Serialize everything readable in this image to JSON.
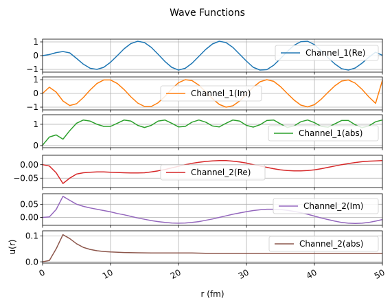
{
  "figure": {
    "title": "Wave Functions"
  },
  "chart_data": [
    {
      "type": "line",
      "name_id": "channel_1_re",
      "series": [
        {
          "name": "Channel_1(Re)",
          "color": "#1f77b4",
          "x": [
            0,
            1,
            2,
            3,
            4,
            5,
            6,
            7,
            8,
            9,
            10,
            11,
            12,
            13,
            14,
            15,
            16,
            17,
            18,
            19,
            20,
            21,
            22,
            23,
            24,
            25,
            26,
            27,
            28,
            29,
            30,
            31,
            32,
            33,
            34,
            35,
            36,
            37,
            38,
            39,
            40,
            41,
            42,
            43,
            44,
            45,
            46,
            47,
            48,
            49,
            50
          ],
          "y": [
            0,
            0.08,
            0.22,
            0.3,
            0.2,
            -0.2,
            -0.62,
            -0.92,
            -1.0,
            -0.85,
            -0.48,
            0.0,
            0.5,
            0.88,
            1.05,
            0.95,
            0.6,
            0.1,
            -0.42,
            -0.85,
            -1.05,
            -0.92,
            -0.55,
            -0.05,
            0.45,
            0.85,
            1.05,
            0.95,
            0.6,
            0.1,
            -0.4,
            -0.85,
            -1.05,
            -1.02,
            -0.7,
            -0.22,
            0.3,
            0.75,
            1.02,
            1.05,
            0.8,
            0.35,
            -0.15,
            -0.6,
            -0.95,
            -1.05,
            -0.9,
            -0.55,
            -0.12,
            0.25,
            0.02
          ]
        }
      ],
      "ylim": [
        -1.2,
        1.2
      ],
      "yticks": [
        -1,
        0,
        1
      ],
      "ytick_labels": [
        "−1",
        "0",
        "1"
      ],
      "xlim": [
        0,
        50
      ],
      "legend": "right"
    },
    {
      "type": "line",
      "name_id": "channel_1_im",
      "series": [
        {
          "name": "Channel_1(Im)",
          "color": "#ff7f0e",
          "x": [
            0,
            1,
            2,
            3,
            4,
            5,
            6,
            7,
            8,
            9,
            10,
            11,
            12,
            13,
            14,
            15,
            16,
            17,
            18,
            19,
            20,
            21,
            22,
            23,
            24,
            25,
            26,
            27,
            28,
            29,
            30,
            31,
            32,
            33,
            34,
            35,
            36,
            37,
            38,
            39,
            40,
            41,
            42,
            43,
            44,
            45,
            46,
            47,
            48,
            49,
            50
          ],
          "y": [
            0,
            0.45,
            0.1,
            -0.55,
            -0.88,
            -0.75,
            -0.3,
            0.25,
            0.72,
            0.98,
            0.98,
            0.72,
            0.28,
            -0.25,
            -0.7,
            -0.95,
            -0.95,
            -0.68,
            -0.22,
            0.32,
            0.78,
            1.0,
            0.93,
            0.6,
            0.12,
            -0.38,
            -0.8,
            -1.0,
            -0.9,
            -0.55,
            -0.05,
            0.45,
            0.85,
            1.0,
            0.88,
            0.5,
            0.0,
            -0.48,
            -0.85,
            -0.98,
            -0.82,
            -0.42,
            0.08,
            0.55,
            0.9,
            0.98,
            0.75,
            0.3,
            -0.25,
            -0.72,
            0.95
          ]
        }
      ],
      "ylim": [
        -1.2,
        1.2
      ],
      "yticks": [
        -1,
        0,
        1
      ],
      "ytick_labels": [
        "−1",
        "0",
        "1"
      ],
      "xlim": [
        0,
        50
      ],
      "legend": "center"
    },
    {
      "type": "line",
      "name_id": "channel_1_abs",
      "series": [
        {
          "name": "Channel_1(abs)",
          "color": "#2ca02c",
          "x": [
            0,
            1,
            2,
            3,
            4,
            5,
            6,
            7,
            8,
            9,
            10,
            11,
            12,
            13,
            14,
            15,
            16,
            17,
            18,
            19,
            20,
            21,
            22,
            23,
            24,
            25,
            26,
            27,
            28,
            29,
            30,
            31,
            32,
            33,
            34,
            35,
            36,
            37,
            38,
            39,
            40,
            41,
            42,
            43,
            44,
            45,
            46,
            47,
            48,
            49,
            50
          ],
          "y": [
            0.02,
            0.4,
            0.5,
            0.3,
            0.7,
            1.05,
            1.2,
            1.15,
            1.0,
            0.9,
            0.9,
            1.05,
            1.2,
            1.15,
            0.95,
            0.85,
            0.95,
            1.15,
            1.2,
            1.05,
            0.88,
            0.9,
            1.1,
            1.2,
            1.1,
            0.92,
            0.88,
            1.05,
            1.2,
            1.15,
            0.95,
            0.87,
            0.98,
            1.18,
            1.2,
            1.02,
            0.85,
            0.92,
            1.12,
            1.2,
            1.08,
            0.9,
            0.86,
            1.02,
            1.18,
            1.18,
            0.98,
            0.84,
            0.92,
            1.12,
            1.2
          ]
        }
      ],
      "ylim": [
        -0.1,
        1.45
      ],
      "yticks": [
        0,
        1
      ],
      "ytick_labels": [
        "0",
        "1"
      ],
      "xlim": [
        0,
        50
      ],
      "legend": "lower right"
    },
    {
      "type": "line",
      "name_id": "channel_2_re",
      "series": [
        {
          "name": "Channel_2(Re)",
          "color": "#d62728",
          "x": [
            0,
            1,
            2,
            3,
            4,
            5,
            6,
            7,
            8,
            9,
            10,
            11,
            12,
            13,
            14,
            15,
            16,
            17,
            18,
            19,
            20,
            21,
            22,
            23,
            24,
            25,
            26,
            27,
            28,
            29,
            30,
            31,
            32,
            33,
            34,
            35,
            36,
            37,
            38,
            39,
            40,
            41,
            42,
            43,
            44,
            45,
            46,
            47,
            48,
            49,
            50
          ],
          "y": [
            0,
            -0.005,
            -0.03,
            -0.07,
            -0.05,
            -0.035,
            -0.03,
            -0.028,
            -0.027,
            -0.027,
            -0.028,
            -0.029,
            -0.03,
            -0.031,
            -0.031,
            -0.03,
            -0.027,
            -0.023,
            -0.018,
            -0.012,
            -0.006,
            0.0,
            0.005,
            0.009,
            0.012,
            0.014,
            0.015,
            0.015,
            0.013,
            0.01,
            0.006,
            0.0,
            -0.005,
            -0.01,
            -0.015,
            -0.019,
            -0.022,
            -0.023,
            -0.023,
            -0.022,
            -0.019,
            -0.015,
            -0.01,
            -0.005,
            0.0,
            0.004,
            0.008,
            0.011,
            0.013,
            0.014,
            0.015
          ]
        }
      ],
      "ylim": [
        -0.085,
        0.035
      ],
      "yticks": [
        0,
        -0.05
      ],
      "ytick_labels": [
        "0.00",
        "−0.05"
      ],
      "xlim": [
        0,
        50
      ],
      "legend": "center"
    },
    {
      "type": "line",
      "name_id": "channel_2_im",
      "series": [
        {
          "name": "Channel_2(Im)",
          "color": "#9467bd",
          "x": [
            0,
            1,
            2,
            3,
            4,
            5,
            6,
            7,
            8,
            9,
            10,
            11,
            12,
            13,
            14,
            15,
            16,
            17,
            18,
            19,
            20,
            21,
            22,
            23,
            24,
            25,
            26,
            27,
            28,
            29,
            30,
            31,
            32,
            33,
            34,
            35,
            36,
            37,
            38,
            39,
            40,
            41,
            42,
            43,
            44,
            45,
            46,
            47,
            48,
            49,
            50
          ],
          "y": [
            0,
            0.002,
            0.03,
            0.08,
            0.065,
            0.05,
            0.042,
            0.036,
            0.031,
            0.026,
            0.021,
            0.015,
            0.01,
            0.004,
            -0.002,
            -0.007,
            -0.012,
            -0.016,
            -0.019,
            -0.021,
            -0.022,
            -0.021,
            -0.019,
            -0.016,
            -0.011,
            -0.006,
            0.0,
            0.006,
            0.012,
            0.017,
            0.022,
            0.026,
            0.029,
            0.031,
            0.031,
            0.03,
            0.027,
            0.023,
            0.018,
            0.012,
            0.005,
            -0.002,
            -0.008,
            -0.014,
            -0.019,
            -0.022,
            -0.023,
            -0.022,
            -0.019,
            -0.014,
            -0.008
          ]
        }
      ],
      "ylim": [
        -0.03,
        0.09
      ],
      "yticks": [
        0.05,
        0
      ],
      "ytick_labels": [
        "0.05",
        "0.00"
      ],
      "xlim": [
        0,
        50
      ],
      "legend": "right"
    },
    {
      "type": "line",
      "name_id": "channel_2_abs",
      "series": [
        {
          "name": "Channel_2(abs)",
          "color": "#8c564b",
          "x": [
            0,
            1,
            2,
            3,
            4,
            5,
            6,
            7,
            8,
            9,
            10,
            12,
            14,
            16,
            18,
            20,
            22,
            24,
            26,
            28,
            30,
            32,
            34,
            36,
            38,
            40,
            42,
            44,
            46,
            48,
            50
          ],
          "y": [
            0,
            0.005,
            0.05,
            0.105,
            0.09,
            0.07,
            0.056,
            0.048,
            0.043,
            0.04,
            0.038,
            0.036,
            0.035,
            0.034,
            0.034,
            0.034,
            0.034,
            0.033,
            0.033,
            0.033,
            0.033,
            0.033,
            0.033,
            0.033,
            0.033,
            0.033,
            0.033,
            0.033,
            0.033,
            0.033,
            0.033
          ]
        }
      ],
      "ylim": [
        -0.005,
        0.12
      ],
      "yticks": [
        0,
        0.1
      ],
      "ytick_labels": [
        "0.0",
        "0.1"
      ],
      "ylabel": "u(r)",
      "xlim": [
        0,
        50
      ],
      "xticks": [
        0,
        10,
        20,
        30,
        40,
        50
      ],
      "xtick_labels": [
        "0",
        "10",
        "20",
        "30",
        "40",
        "50"
      ],
      "xlabel": "r (fm)",
      "legend": "upper right"
    }
  ]
}
